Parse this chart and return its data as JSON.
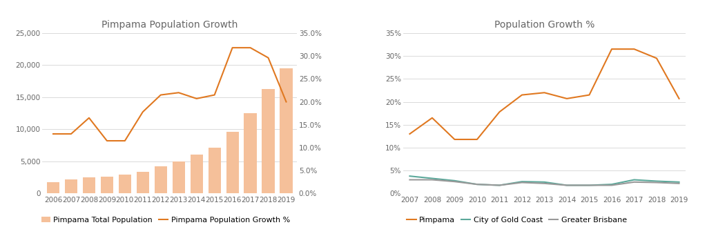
{
  "chart1": {
    "title": "Pimpama Population Growth",
    "years_bar": [
      2006,
      2007,
      2008,
      2009,
      2010,
      2011,
      2012,
      2013,
      2014,
      2015,
      2016,
      2017,
      2018,
      2019
    ],
    "population": [
      1800,
      2200,
      2500,
      2600,
      3000,
      3400,
      4200,
      5000,
      6100,
      7100,
      9600,
      12500,
      16300,
      19500
    ],
    "years_line": [
      2006,
      2007,
      2008,
      2009,
      2010,
      2011,
      2012,
      2013,
      2014,
      2015,
      2016,
      2017,
      2018,
      2019
    ],
    "growth_pct": [
      0.13,
      0.13,
      0.165,
      0.115,
      0.115,
      0.178,
      0.215,
      0.22,
      0.207,
      0.215,
      0.318,
      0.318,
      0.296,
      0.2
    ],
    "bar_color": "#f5c09a",
    "line_color": "#e07820",
    "ylim_left": [
      0,
      25000
    ],
    "ylim_right": [
      0,
      0.35
    ],
    "yticks_left": [
      0,
      5000,
      10000,
      15000,
      20000,
      25000
    ],
    "yticks_right": [
      0.0,
      0.05,
      0.1,
      0.15,
      0.2,
      0.25,
      0.3,
      0.35
    ],
    "legend_bar": "Pimpama Total Population",
    "legend_line": "Pimpama Population Growth %"
  },
  "chart2": {
    "title": "Population Growth %",
    "years": [
      2007,
      2008,
      2009,
      2010,
      2011,
      2012,
      2013,
      2014,
      2015,
      2016,
      2017,
      2018,
      2019
    ],
    "pimpama": [
      0.13,
      0.165,
      0.118,
      0.118,
      0.178,
      0.215,
      0.22,
      0.207,
      0.215,
      0.315,
      0.315,
      0.295,
      0.207
    ],
    "gold_coast": [
      0.038,
      0.033,
      0.028,
      0.02,
      0.018,
      0.026,
      0.025,
      0.018,
      0.018,
      0.02,
      0.03,
      0.027,
      0.025
    ],
    "brisbane": [
      0.03,
      0.03,
      0.026,
      0.02,
      0.018,
      0.024,
      0.022,
      0.018,
      0.018,
      0.018,
      0.025,
      0.024,
      0.022
    ],
    "pimpama_color": "#e07820",
    "gold_coast_color": "#5ba89a",
    "brisbane_color": "#999999",
    "ylim": [
      0,
      0.35
    ],
    "yticks": [
      0.0,
      0.05,
      0.1,
      0.15,
      0.2,
      0.25,
      0.3,
      0.35
    ],
    "legend_pimpama": "Pimpama",
    "legend_gold_coast": "City of Gold Coast",
    "legend_brisbane": "Greater Brisbane"
  },
  "bg_color": "#ffffff",
  "grid_color": "#d5d5d5",
  "text_color": "#666666",
  "title_fontsize": 10,
  "tick_fontsize": 7.5,
  "legend_fontsize": 8
}
